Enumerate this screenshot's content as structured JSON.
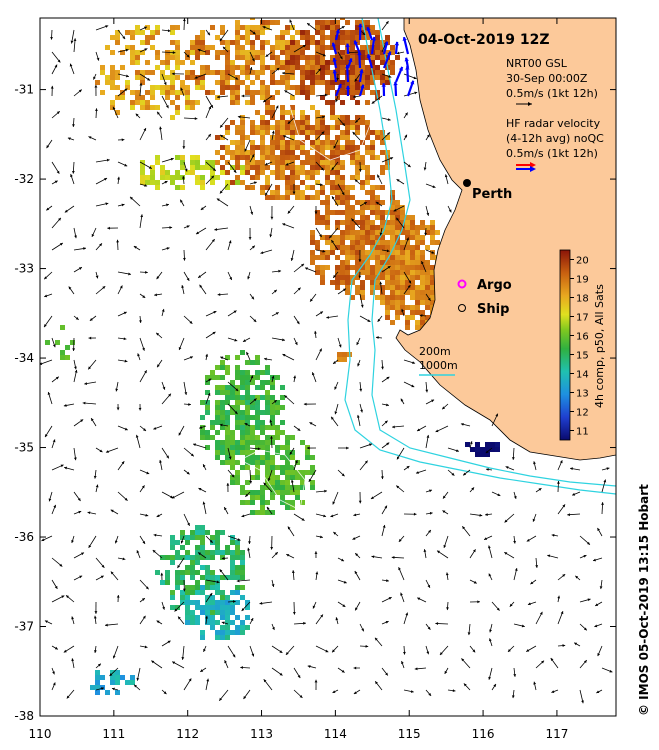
{
  "title": "04-Oct-2019 12Z",
  "place": "Perth",
  "legend": {
    "model_name": "NRT00 GSL",
    "model_time": "30-Sep 00:00Z",
    "model_scale": "0.5m/s (1kt 12h)",
    "radar_line1": "HF radar velocity",
    "radar_line2": "(4-12h avg) noQC",
    "radar_scale": "0.5m/s (1kt 12h)",
    "argo_label": "Argo",
    "ship_label": "Ship",
    "contour_200": "200m",
    "contour_1000": "1000m"
  },
  "colorbar": {
    "label": "4h comp, p50, All Sats",
    "ticks": [
      "11",
      "12",
      "13",
      "14",
      "15",
      "16",
      "17",
      "18",
      "19",
      "20"
    ]
  },
  "credit": "© IMOS 05-Oct-2019 13:15 Hobart",
  "colors": {
    "land": "#fcc99a",
    "shelf_contour": "#2fd3e0",
    "radar_red": "#ff0000",
    "radar_blue": "#0000ff",
    "argo": "#ff00ff"
  },
  "map_data": {
    "type": "map",
    "lon_range": [
      110,
      117.8
    ],
    "lat_range": [
      -38,
      -30.2
    ],
    "lon_ticks": [
      "110",
      "111",
      "112",
      "113",
      "114",
      "115",
      "116",
      "117"
    ],
    "lat_ticks": [
      "-31",
      "-32",
      "-33",
      "-34",
      "-35",
      "-36",
      "-37",
      "-38"
    ],
    "perth": {
      "lon": 115.86,
      "lat": -31.95
    },
    "argo": {
      "lon": 115.72,
      "lat": -33.1
    },
    "ship": {
      "lon": 115.72,
      "lat": -33.35
    },
    "sst_range": [
      11,
      20
    ]
  }
}
